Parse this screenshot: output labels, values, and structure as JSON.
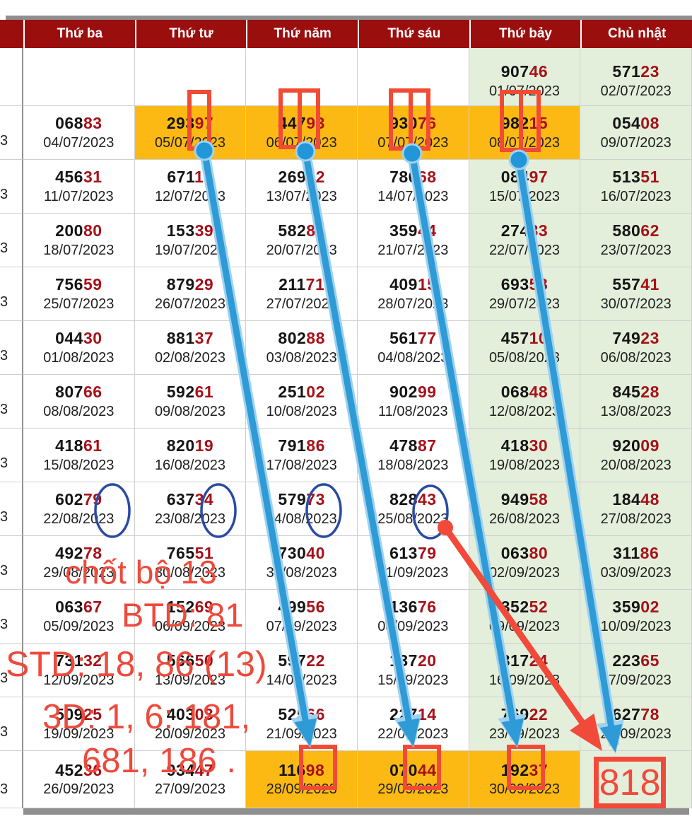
{
  "header": {
    "days": [
      "Thứ ba",
      "Thứ tư",
      "Thứ năm",
      "Thứ sáu",
      "Thứ bảy",
      "Chủ nhật"
    ]
  },
  "table": {
    "rows": [
      {
        "sliver": "",
        "cells": [
          null,
          null,
          null,
          null,
          {
            "v": "90746",
            "d": "01/07/2023",
            "bg": "g"
          },
          {
            "v": "57123",
            "d": "02/07/2023",
            "bg": "g"
          }
        ]
      },
      {
        "sliver": "3",
        "cells": [
          {
            "v": "06883",
            "d": "04/07/2023",
            "bg": "w"
          },
          {
            "v": "29397",
            "d": "05/07/2023",
            "bg": "o"
          },
          {
            "v": "44793",
            "d": "06/07/2023",
            "bg": "o"
          },
          {
            "v": "93076",
            "d": "07/07/2023",
            "bg": "o"
          },
          {
            "v": "98215",
            "d": "08/07/2023",
            "bg": "o"
          },
          {
            "v": "05408",
            "d": "09/07/2023",
            "bg": "g"
          }
        ]
      },
      {
        "sliver": "3",
        "cells": [
          {
            "v": "45631",
            "d": "11/07/2023",
            "bg": "w"
          },
          {
            "v": "67115",
            "d": "12/07/2023",
            "bg": "w"
          },
          {
            "v": "26902",
            "d": "13/07/2023",
            "bg": "w"
          },
          {
            "v": "78668",
            "d": "14/07/2023",
            "bg": "w"
          },
          {
            "v": "08497",
            "d": "15/07/2023",
            "bg": "g"
          },
          {
            "v": "51351",
            "d": "16/07/2023",
            "bg": "g"
          }
        ]
      },
      {
        "sliver": "3",
        "cells": [
          {
            "v": "20080",
            "d": "18/07/2023",
            "bg": "w"
          },
          {
            "v": "15339",
            "d": "19/07/2023",
            "bg": "w"
          },
          {
            "v": "58285",
            "d": "20/07/2023",
            "bg": "w"
          },
          {
            "v": "35944",
            "d": "21/07/2023",
            "bg": "w"
          },
          {
            "v": "27433",
            "d": "22/07/2023",
            "bg": "g"
          },
          {
            "v": "58062",
            "d": "23/07/2023",
            "bg": "g"
          }
        ]
      },
      {
        "sliver": "3",
        "cells": [
          {
            "v": "75659",
            "d": "25/07/2023",
            "bg": "w"
          },
          {
            "v": "87929",
            "d": "26/07/2023",
            "bg": "w"
          },
          {
            "v": "21171",
            "d": "27/07/2023",
            "bg": "w"
          },
          {
            "v": "40915",
            "d": "28/07/2023",
            "bg": "w"
          },
          {
            "v": "69358",
            "d": "29/07/2023",
            "bg": "g"
          },
          {
            "v": "55741",
            "d": "30/07/2023",
            "bg": "g"
          }
        ]
      },
      {
        "sliver": "3",
        "cells": [
          {
            "v": "04430",
            "d": "01/08/2023",
            "bg": "w"
          },
          {
            "v": "88137",
            "d": "02/08/2023",
            "bg": "w"
          },
          {
            "v": "80288",
            "d": "03/08/2023",
            "bg": "w"
          },
          {
            "v": "56177",
            "d": "04/08/2023",
            "bg": "w"
          },
          {
            "v": "45710",
            "d": "05/08/2023",
            "bg": "g"
          },
          {
            "v": "74923",
            "d": "06/08/2023",
            "bg": "g"
          }
        ]
      },
      {
        "sliver": "3",
        "cells": [
          {
            "v": "80766",
            "d": "08/08/2023",
            "bg": "w"
          },
          {
            "v": "59261",
            "d": "09/08/2023",
            "bg": "w"
          },
          {
            "v": "25102",
            "d": "10/08/2023",
            "bg": "w"
          },
          {
            "v": "90299",
            "d": "11/08/2023",
            "bg": "w"
          },
          {
            "v": "06848",
            "d": "12/08/2023",
            "bg": "g"
          },
          {
            "v": "84528",
            "d": "13/08/2023",
            "bg": "g"
          }
        ]
      },
      {
        "sliver": "3",
        "cells": [
          {
            "v": "41861",
            "d": "15/08/2023",
            "bg": "w"
          },
          {
            "v": "82019",
            "d": "16/08/2023",
            "bg": "w"
          },
          {
            "v": "79186",
            "d": "17/08/2023",
            "bg": "w"
          },
          {
            "v": "47887",
            "d": "18/08/2023",
            "bg": "w"
          },
          {
            "v": "41830",
            "d": "19/08/2023",
            "bg": "g"
          },
          {
            "v": "92009",
            "d": "20/08/2023",
            "bg": "g"
          }
        ]
      },
      {
        "sliver": "3",
        "cells": [
          {
            "v": "60279",
            "d": "22/08/2023",
            "bg": "w"
          },
          {
            "v": "63734",
            "d": "23/08/2023",
            "bg": "w"
          },
          {
            "v": "57973",
            "d": "24/08/2023",
            "bg": "w"
          },
          {
            "v": "82843",
            "d": "25/08/2023",
            "bg": "w"
          },
          {
            "v": "94958",
            "d": "26/08/2023",
            "bg": "g"
          },
          {
            "v": "18448",
            "d": "27/08/2023",
            "bg": "g"
          }
        ]
      },
      {
        "sliver": "3",
        "cells": [
          {
            "v": "49278",
            "d": "29/08/2023",
            "bg": "w"
          },
          {
            "v": "76551",
            "d": "30/08/2023",
            "bg": "w"
          },
          {
            "v": "73040",
            "d": "31/08/2023",
            "bg": "w"
          },
          {
            "v": "61379",
            "d": "01/09/2023",
            "bg": "w"
          },
          {
            "v": "06380",
            "d": "02/09/2023",
            "bg": "g"
          },
          {
            "v": "31186",
            "d": "03/09/2023",
            "bg": "g"
          }
        ]
      },
      {
        "sliver": "3",
        "cells": [
          {
            "v": "06367",
            "d": "05/09/2023",
            "bg": "w"
          },
          {
            "v": "15269",
            "d": "06/09/2023",
            "bg": "w"
          },
          {
            "v": "49956",
            "d": "07/09/2023",
            "bg": "w"
          },
          {
            "v": "13676",
            "d": "08/09/2023",
            "bg": "w"
          },
          {
            "v": "35252",
            "d": "09/09/2023",
            "bg": "g"
          },
          {
            "v": "35902",
            "d": "10/09/2023",
            "bg": "g"
          }
        ]
      },
      {
        "sliver": "3",
        "cells": [
          {
            "v": "73132",
            "d": "12/09/2023",
            "bg": "w"
          },
          {
            "v": "56650",
            "d": "13/09/2023",
            "bg": "w"
          },
          {
            "v": "59722",
            "d": "14/09/2023",
            "bg": "w"
          },
          {
            "v": "13720",
            "d": "15/09/2023",
            "bg": "w"
          },
          {
            "v": "31724",
            "d": "16/09/2023",
            "bg": "g"
          },
          {
            "v": "22365",
            "d": "17/09/2023",
            "bg": "g"
          }
        ]
      },
      {
        "sliver": "3",
        "cells": [
          {
            "v": "50925",
            "d": "19/09/2023",
            "bg": "w"
          },
          {
            "v": "40303",
            "d": "20/09/2023",
            "bg": "w"
          },
          {
            "v": "52566",
            "d": "21/09/2023",
            "bg": "w"
          },
          {
            "v": "22714",
            "d": "22/09/2023",
            "bg": "w"
          },
          {
            "v": "76922",
            "d": "23/09/2023",
            "bg": "g"
          },
          {
            "v": "62778",
            "d": "24/09/2023",
            "bg": "g"
          }
        ]
      },
      {
        "sliver": "3",
        "cells": [
          {
            "v": "45236",
            "d": "26/09/2023",
            "bg": "w"
          },
          {
            "v": "93447",
            "d": "27/09/2023",
            "bg": "w"
          },
          {
            "v": "11698",
            "d": "28/09/2023",
            "bg": "o"
          },
          {
            "v": "07044",
            "d": "29/09/2023",
            "bg": "o"
          },
          {
            "v": "19237",
            "d": "30/09/2023",
            "bg": "o"
          },
          {
            "v": null,
            "d": null,
            "bg": "g"
          }
        ]
      }
    ]
  },
  "annotations": {
    "note_line1": "chốt bộ 13",
    "note_line2": "BTD: 81",
    "note_line3": "STD: 18, 86 (13)",
    "note_line4": "3D: 1, 6: 181,",
    "note_line5": "681, 186 .",
    "result_box": "818"
  },
  "colors": {
    "header_bg": "#9b0e0e",
    "highlight_orange": "#fdb913",
    "highlight_green": "#e3efdb",
    "number_red": "#a6121a",
    "annotation_red": "#ee4a3c",
    "arrow_blue": "#2e9ad6",
    "circle_blue": "#2b4aa2"
  }
}
